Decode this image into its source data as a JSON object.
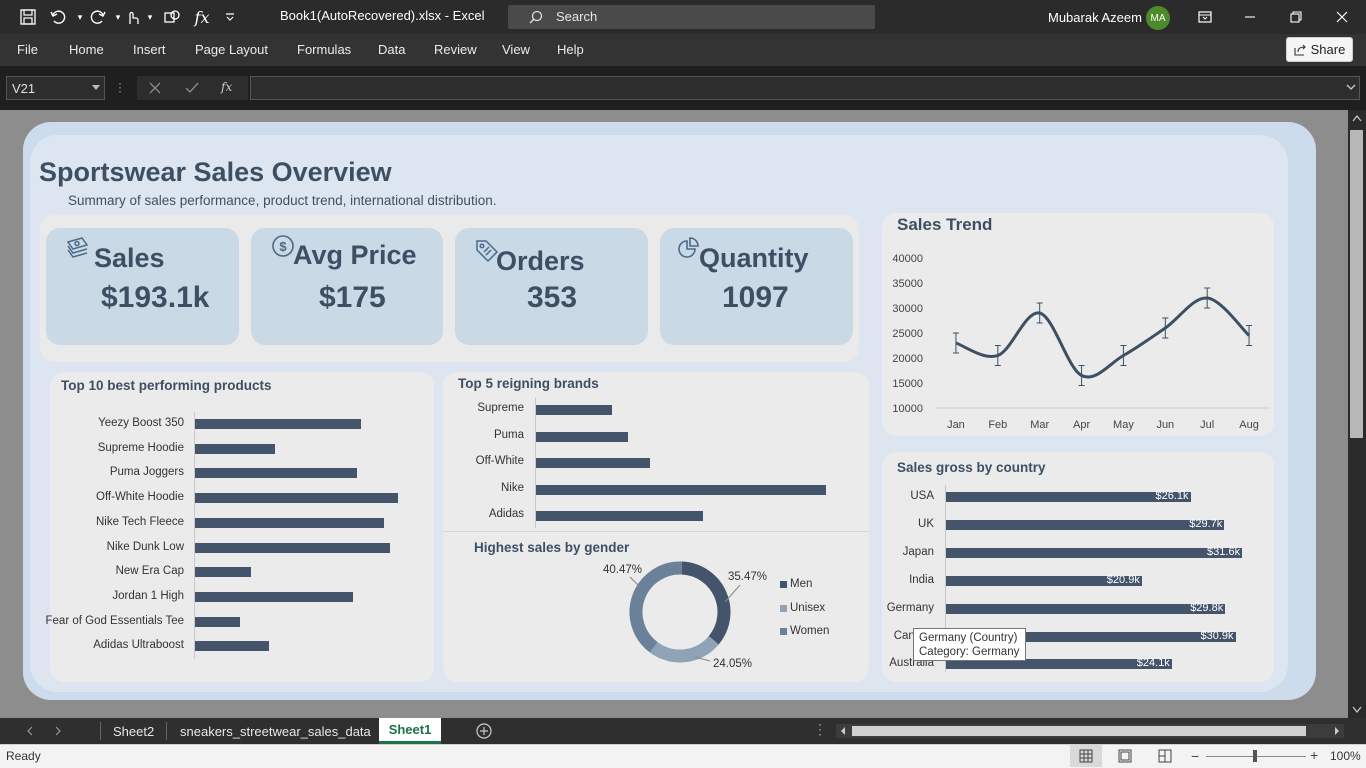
{
  "titlebar": {
    "doc_title": "Book1(AutoRecovered).xlsx  -  Excel",
    "search_placeholder": "Search",
    "user_name": "Mubarak Azeem",
    "user_initials": "MA"
  },
  "menu": [
    "File",
    "Home",
    "Insert",
    "Page Layout",
    "Formulas",
    "Data",
    "Review",
    "View",
    "Help"
  ],
  "share_label": "Share",
  "formula_bar": {
    "name_box": "V21",
    "fx": "fx",
    "formula": ""
  },
  "dashboard": {
    "title": "Sportswear Sales Overview",
    "subtitle": "Summary of sales performance, product trend, international distribution.",
    "kpis": [
      {
        "label": "Sales",
        "value": "$193.1k",
        "icon": "money-stack-icon"
      },
      {
        "label": "Avg Price",
        "value": "$175",
        "icon": "dollar-coin-icon"
      },
      {
        "label": "Orders",
        "value": "353",
        "icon": "price-tag-icon"
      },
      {
        "label": "Quantity",
        "value": "1097",
        "icon": "pie-chart-icon"
      }
    ]
  },
  "chart_data": [
    {
      "type": "bar",
      "orientation": "horizontal",
      "title": "Top 10 best performing products",
      "categories": [
        "Yeezy Boost 350",
        "Supreme Hoodie",
        "Puma Joggers",
        "Off-White Hoodie",
        "Nike Tech Fleece",
        "Nike Dunk Low",
        "New Era Cap",
        "Jordan 1 High",
        "Fear of God Essentials Tee",
        "Adidas Ultraboost"
      ],
      "values": [
        166,
        80,
        162,
        203,
        189,
        195,
        56,
        158,
        45,
        74
      ]
    },
    {
      "type": "bar",
      "orientation": "horizontal",
      "title": "Top 5 reigning brands",
      "categories": [
        "Supreme",
        "Puma",
        "Off-White",
        "Nike",
        "Adidas"
      ],
      "values": [
        76,
        92,
        114,
        290,
        167
      ]
    },
    {
      "type": "pie",
      "subtype": "donut",
      "title": "Highest sales by gender",
      "categories": [
        "Men",
        "Unisex",
        "Women"
      ],
      "values": [
        35.47,
        24.05,
        40.47
      ],
      "data_labels": [
        "35.47%",
        "24.05%",
        "40.47%"
      ],
      "colors": [
        "#44546a",
        "#8fa2b6",
        "#6b819a"
      ],
      "legend": "right"
    },
    {
      "type": "line",
      "title": "Sales Trend",
      "x": [
        "Jan",
        "Feb",
        "Mar",
        "Apr",
        "May",
        "Jun",
        "Jul",
        "Aug"
      ],
      "y": [
        23000,
        20500,
        29000,
        16500,
        20500,
        26000,
        32000,
        24500
      ],
      "error_bars": true,
      "ylim": [
        10000,
        40000
      ],
      "yticks": [
        "40000",
        "35000",
        "30000",
        "25000",
        "20000",
        "15000",
        "10000"
      ],
      "grid": false
    },
    {
      "type": "bar",
      "orientation": "horizontal",
      "title": "Sales gross by country",
      "categories": [
        "USA",
        "UK",
        "Japan",
        "India",
        "Germany",
        "Canada",
        "Australia"
      ],
      "values": [
        26.1,
        29.7,
        31.6,
        20.9,
        29.8,
        30.9,
        24.1
      ],
      "data_labels": [
        "$26.1k",
        "$29.7k",
        "$31.6k",
        "$20.9k",
        "$29.8k",
        "$30.9k",
        "$24.1k"
      ],
      "xlim": [
        0,
        34
      ]
    }
  ],
  "tooltip": {
    "line1": "Germany (Country)",
    "line2": "Category: Germany"
  },
  "sheet_tabs": [
    "Sheet2",
    "sneakers_streetwear_sales_data",
    "Sheet1"
  ],
  "active_tab": "Sheet1",
  "status": {
    "ready": "Ready",
    "zoom": "100%"
  }
}
